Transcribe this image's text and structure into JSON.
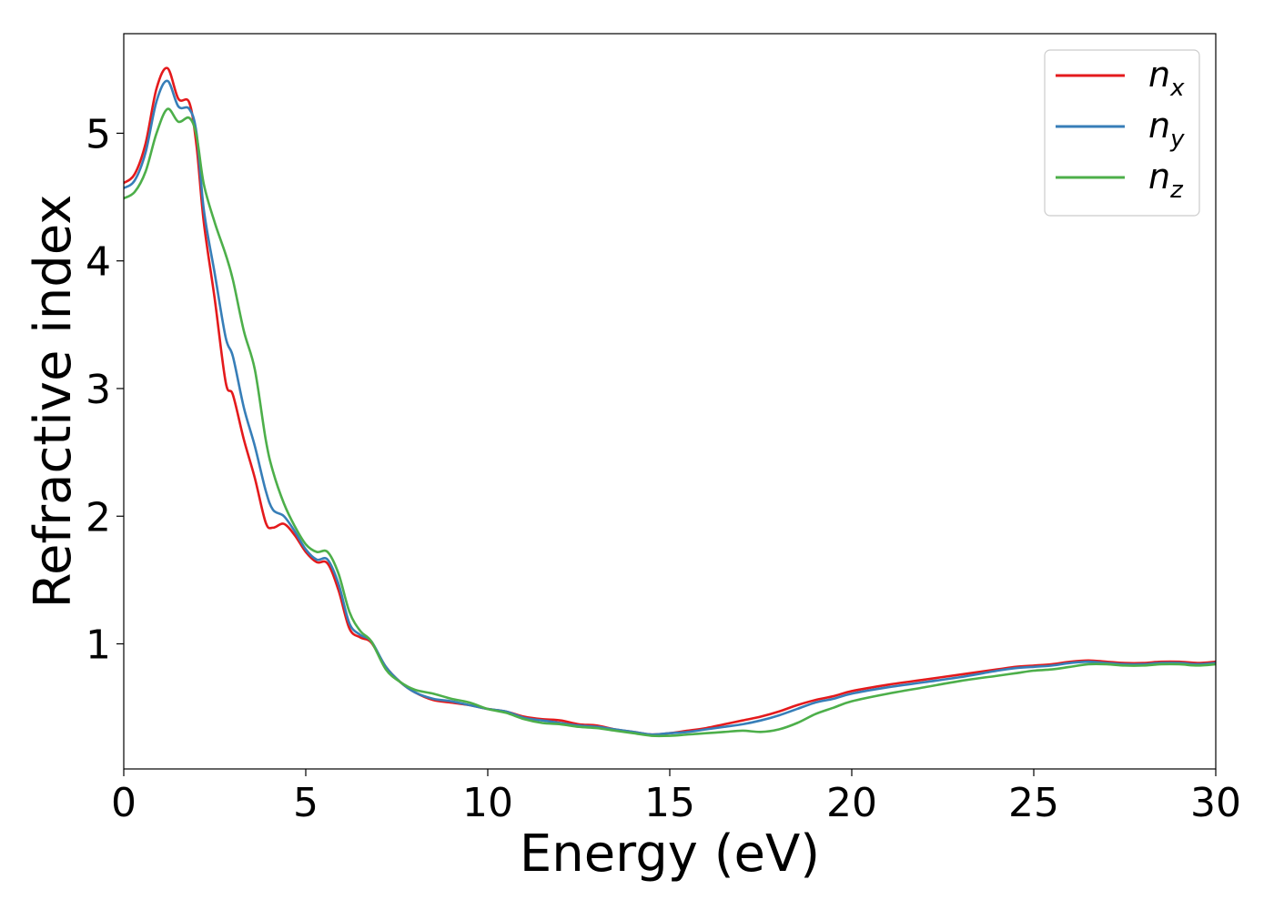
{
  "chart_data": {
    "type": "line",
    "xlabel": "Energy (eV)",
    "ylabel": "Refractive index",
    "xlim": [
      0,
      30
    ],
    "ylim": [
      0.02,
      5.78
    ],
    "x_ticks": [
      "0",
      "5",
      "10",
      "15",
      "20",
      "25",
      "30"
    ],
    "y_ticks": [
      "1",
      "2",
      "3",
      "4",
      "5"
    ],
    "grid": false,
    "legend_position": "top-right",
    "colors": {
      "nx": "#e41a1c",
      "ny": "#377eb8",
      "nz": "#4daf4a"
    },
    "series": [
      {
        "name": "n_x",
        "label_base": "n",
        "label_sub": "x",
        "color": "#e41a1c",
        "x": [
          0,
          0.3,
          0.6,
          0.9,
          1.2,
          1.5,
          1.8,
          2.0,
          2.2,
          2.5,
          2.8,
          3.0,
          3.3,
          3.6,
          3.9,
          4.1,
          4.4,
          4.7,
          5.0,
          5.3,
          5.6,
          5.9,
          6.2,
          6.5,
          6.8,
          7.2,
          7.6,
          8.0,
          8.5,
          9.0,
          9.5,
          10.0,
          10.5,
          11.0,
          11.5,
          12.0,
          12.5,
          13.0,
          13.5,
          14.0,
          14.5,
          15.0,
          15.5,
          16.0,
          16.5,
          17.0,
          17.5,
          18.0,
          18.5,
          19.0,
          19.5,
          20.0,
          21.0,
          22.0,
          23.0,
          24.0,
          24.5,
          25.0,
          25.5,
          26.0,
          26.5,
          27.0,
          27.5,
          28.0,
          28.5,
          29.0,
          29.5,
          30.0
        ],
        "y": [
          4.61,
          4.68,
          4.92,
          5.35,
          5.51,
          5.27,
          5.24,
          4.9,
          4.3,
          3.7,
          3.05,
          2.95,
          2.6,
          2.3,
          1.95,
          1.91,
          1.94,
          1.85,
          1.72,
          1.64,
          1.63,
          1.42,
          1.12,
          1.05,
          1.01,
          0.82,
          0.7,
          0.62,
          0.56,
          0.54,
          0.52,
          0.49,
          0.47,
          0.43,
          0.41,
          0.4,
          0.37,
          0.36,
          0.33,
          0.31,
          0.29,
          0.3,
          0.32,
          0.34,
          0.37,
          0.4,
          0.43,
          0.47,
          0.52,
          0.56,
          0.59,
          0.63,
          0.68,
          0.72,
          0.76,
          0.8,
          0.82,
          0.83,
          0.84,
          0.86,
          0.87,
          0.86,
          0.85,
          0.85,
          0.86,
          0.86,
          0.85,
          0.86
        ]
      },
      {
        "name": "n_y",
        "label_base": "n",
        "label_sub": "y",
        "color": "#377eb8",
        "x": [
          0,
          0.3,
          0.6,
          0.9,
          1.2,
          1.5,
          1.8,
          2.0,
          2.2,
          2.5,
          2.8,
          3.0,
          3.3,
          3.6,
          3.9,
          4.1,
          4.4,
          4.7,
          5.0,
          5.3,
          5.6,
          5.9,
          6.2,
          6.5,
          6.8,
          7.2,
          7.6,
          8.0,
          8.5,
          9.0,
          9.5,
          10.0,
          10.5,
          11.0,
          11.5,
          12.0,
          12.5,
          13.0,
          13.5,
          14.0,
          14.5,
          15.0,
          15.5,
          16.0,
          16.5,
          17.0,
          17.5,
          18.0,
          18.5,
          19.0,
          19.5,
          20.0,
          21.0,
          22.0,
          23.0,
          24.0,
          24.5,
          25.0,
          25.5,
          26.0,
          26.5,
          27.0,
          27.5,
          28.0,
          28.5,
          29.0,
          29.5,
          30.0
        ],
        "y": [
          4.57,
          4.63,
          4.85,
          5.25,
          5.41,
          5.21,
          5.19,
          5.0,
          4.4,
          3.9,
          3.4,
          3.25,
          2.85,
          2.55,
          2.2,
          2.05,
          2.0,
          1.88,
          1.74,
          1.66,
          1.66,
          1.47,
          1.16,
          1.07,
          1.02,
          0.82,
          0.7,
          0.62,
          0.57,
          0.55,
          0.52,
          0.49,
          0.47,
          0.42,
          0.4,
          0.38,
          0.36,
          0.35,
          0.33,
          0.31,
          0.29,
          0.3,
          0.31,
          0.33,
          0.35,
          0.37,
          0.4,
          0.44,
          0.49,
          0.54,
          0.57,
          0.61,
          0.66,
          0.7,
          0.74,
          0.79,
          0.81,
          0.82,
          0.83,
          0.85,
          0.86,
          0.85,
          0.84,
          0.84,
          0.85,
          0.85,
          0.84,
          0.85
        ]
      },
      {
        "name": "n_z",
        "label_base": "n",
        "label_sub": "z",
        "color": "#4daf4a",
        "x": [
          0,
          0.3,
          0.6,
          0.9,
          1.2,
          1.5,
          1.8,
          2.0,
          2.2,
          2.5,
          2.8,
          3.0,
          3.3,
          3.6,
          3.9,
          4.1,
          4.4,
          4.7,
          5.0,
          5.3,
          5.6,
          5.9,
          6.2,
          6.5,
          6.8,
          7.2,
          7.6,
          8.0,
          8.5,
          9.0,
          9.5,
          10.0,
          10.5,
          11.0,
          11.5,
          12.0,
          12.5,
          13.0,
          13.5,
          14.0,
          14.5,
          15.0,
          15.5,
          16.0,
          16.5,
          17.0,
          17.5,
          18.0,
          18.5,
          19.0,
          19.5,
          20.0,
          21.0,
          22.0,
          23.0,
          24.0,
          24.5,
          25.0,
          25.5,
          26.0,
          26.5,
          27.0,
          27.5,
          28.0,
          28.5,
          29.0,
          29.5,
          30.0
        ],
        "y": [
          4.49,
          4.54,
          4.7,
          5.0,
          5.19,
          5.09,
          5.12,
          4.98,
          4.6,
          4.3,
          4.05,
          3.85,
          3.45,
          3.15,
          2.6,
          2.35,
          2.1,
          1.92,
          1.78,
          1.72,
          1.72,
          1.55,
          1.25,
          1.1,
          1.02,
          0.8,
          0.7,
          0.64,
          0.61,
          0.57,
          0.54,
          0.49,
          0.46,
          0.41,
          0.38,
          0.37,
          0.35,
          0.34,
          0.32,
          0.3,
          0.28,
          0.28,
          0.29,
          0.3,
          0.31,
          0.32,
          0.31,
          0.33,
          0.38,
          0.45,
          0.5,
          0.55,
          0.61,
          0.66,
          0.71,
          0.75,
          0.77,
          0.79,
          0.8,
          0.82,
          0.84,
          0.84,
          0.83,
          0.83,
          0.84,
          0.84,
          0.83,
          0.84
        ]
      }
    ]
  }
}
